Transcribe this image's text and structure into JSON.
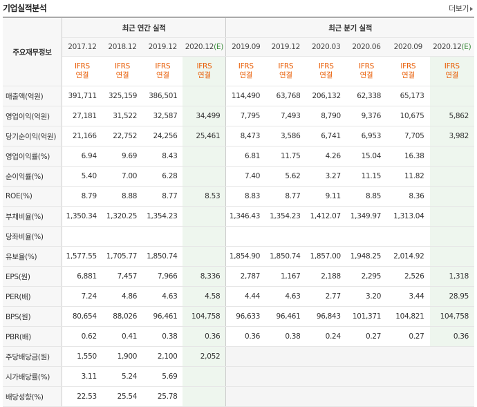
{
  "header": {
    "title": "기업실적분석",
    "more_label": "더보기"
  },
  "table": {
    "row_header_label": "주요재무정보",
    "annual_label": "최근 연간 실적",
    "quarter_label": "최근 분기 실적",
    "periods": [
      {
        "label": "2017.12",
        "est": false
      },
      {
        "label": "2018.12",
        "est": false
      },
      {
        "label": "2019.12",
        "est": false
      },
      {
        "label": "2020.12",
        "est_suffix": "(E)",
        "est": true
      },
      {
        "label": "2019.09",
        "est": false
      },
      {
        "label": "2019.12",
        "est": false
      },
      {
        "label": "2020.03",
        "est": false
      },
      {
        "label": "2020.06",
        "est": false
      },
      {
        "label": "2020.09",
        "est": false
      },
      {
        "label": "2020.12",
        "est_suffix": "(E)",
        "est": true
      }
    ],
    "ifrs_top": "IFRS",
    "ifrs_bottom": "연결",
    "rows": [
      {
        "label": "매출액(억원)",
        "values": [
          "391,711",
          "325,159",
          "386,501",
          "",
          "114,490",
          "63,768",
          "206,132",
          "62,338",
          "65,173",
          ""
        ]
      },
      {
        "label": "영업이익(억원)",
        "values": [
          "27,181",
          "31,522",
          "32,587",
          "34,499",
          "7,795",
          "7,493",
          "8,790",
          "9,376",
          "10,675",
          "5,862"
        ]
      },
      {
        "label": "당기순이익(억원)",
        "values": [
          "21,166",
          "22,752",
          "24,256",
          "25,461",
          "8,473",
          "3,586",
          "6,741",
          "6,953",
          "7,705",
          "3,982"
        ]
      },
      {
        "label": "영업이익률(%)",
        "values": [
          "6.94",
          "9.69",
          "8.43",
          "",
          "6.81",
          "11.75",
          "4.26",
          "15.04",
          "16.38",
          ""
        ]
      },
      {
        "label": "순이익률(%)",
        "values": [
          "5.40",
          "7.00",
          "6.28",
          "",
          "7.40",
          "5.62",
          "3.27",
          "11.15",
          "11.82",
          ""
        ]
      },
      {
        "label": "ROE(%)",
        "values": [
          "8.79",
          "8.88",
          "8.77",
          "8.53",
          "8.83",
          "8.77",
          "9.11",
          "8.85",
          "8.36",
          ""
        ]
      },
      {
        "label": "부채비율(%)",
        "values": [
          "1,350.34",
          "1,320.25",
          "1,354.23",
          "",
          "1,346.43",
          "1,354.23",
          "1,412.07",
          "1,349.97",
          "1,313.04",
          ""
        ]
      },
      {
        "label": "당좌비율(%)",
        "values": [
          "",
          "",
          "",
          "",
          "",
          "",
          "",
          "",
          "",
          ""
        ]
      },
      {
        "label": "유보율(%)",
        "values": [
          "1,577.55",
          "1,705.77",
          "1,850.74",
          "",
          "1,854.90",
          "1,850.74",
          "1,857.00",
          "1,948.25",
          "2,014.92",
          ""
        ]
      },
      {
        "label": "EPS(원)",
        "values": [
          "6,881",
          "7,457",
          "7,966",
          "8,336",
          "2,787",
          "1,167",
          "2,188",
          "2,295",
          "2,526",
          "1,318"
        ]
      },
      {
        "label": "PER(배)",
        "values": [
          "7.24",
          "4.86",
          "4.63",
          "4.58",
          "4.44",
          "4.63",
          "2.77",
          "3.20",
          "3.44",
          "28.95"
        ]
      },
      {
        "label": "BPS(원)",
        "values": [
          "80,654",
          "88,026",
          "96,461",
          "104,758",
          "96,633",
          "96,461",
          "96,843",
          "101,371",
          "104,821",
          "104,758"
        ]
      },
      {
        "label": "PBR(배)",
        "values": [
          "0.62",
          "0.41",
          "0.38",
          "0.36",
          "0.36",
          "0.38",
          "0.24",
          "0.27",
          "0.27",
          "0.36"
        ]
      },
      {
        "label": "주당배당금(원)",
        "values": [
          "1,550",
          "1,900",
          "2,100",
          "2,052",
          "",
          "",
          "",
          "",
          "",
          ""
        ]
      },
      {
        "label": "시가배당률(%)",
        "values": [
          "3.11",
          "5.24",
          "5.69",
          "",
          "",
          "",
          "",
          "",
          "",
          ""
        ]
      },
      {
        "label": "배당성향(%)",
        "values": [
          "22.53",
          "25.54",
          "25.78",
          "",
          "",
          "",
          "",
          "",
          "",
          ""
        ]
      }
    ]
  }
}
